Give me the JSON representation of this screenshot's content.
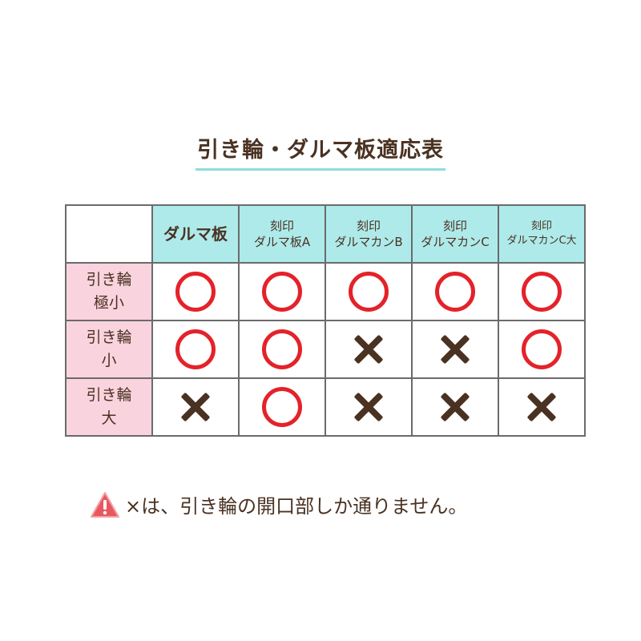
{
  "title": "引き輪・ダルマ板適応表",
  "table": {
    "columns": [
      {
        "line1": "",
        "line2": "ダルマ板"
      },
      {
        "line1": "刻印",
        "line2": "ダルマ板A"
      },
      {
        "line1": "刻印",
        "line2": "ダルマカンB"
      },
      {
        "line1": "刻印",
        "line2": "ダルマカンC"
      },
      {
        "line1": "刻印",
        "line2": "ダルマカンC大"
      }
    ],
    "rows": [
      {
        "line1": "引き輪",
        "line2": "極小",
        "cells": [
          "circle",
          "circle",
          "circle",
          "circle",
          "circle"
        ]
      },
      {
        "line1": "引き輪",
        "line2": "小",
        "cells": [
          "circle",
          "circle",
          "cross",
          "cross",
          "circle"
        ]
      },
      {
        "line1": "引き輪",
        "line2": "大",
        "cells": [
          "cross",
          "circle",
          "cross",
          "cross",
          "cross"
        ]
      }
    ]
  },
  "note": {
    "icon": "warning-triangle-icon",
    "text": "×は、引き輪の開口部しか通りません。"
  },
  "colors": {
    "header": "#aeeaea",
    "row_header": "#f9d3de",
    "circle": "#e4222a",
    "cross": "#4a3222",
    "text": "#4a3222"
  }
}
